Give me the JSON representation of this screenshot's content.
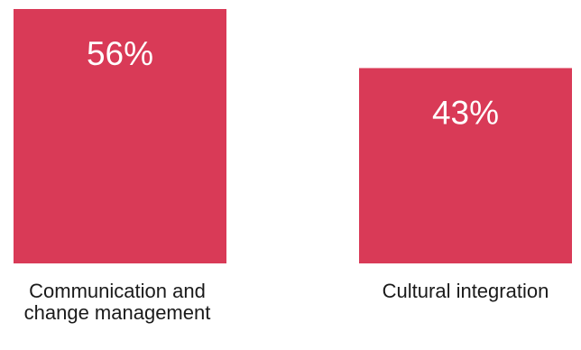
{
  "chart_data": {
    "type": "bar",
    "categories": [
      [
        "Communication and",
        "change management"
      ],
      [
        "Cultural integration"
      ]
    ],
    "values": [
      56,
      43
    ],
    "value_labels": [
      "56%",
      "43%"
    ],
    "bar_color": "#d93a57",
    "ylim": [
      0,
      56
    ],
    "grid": false,
    "legend": "none"
  }
}
